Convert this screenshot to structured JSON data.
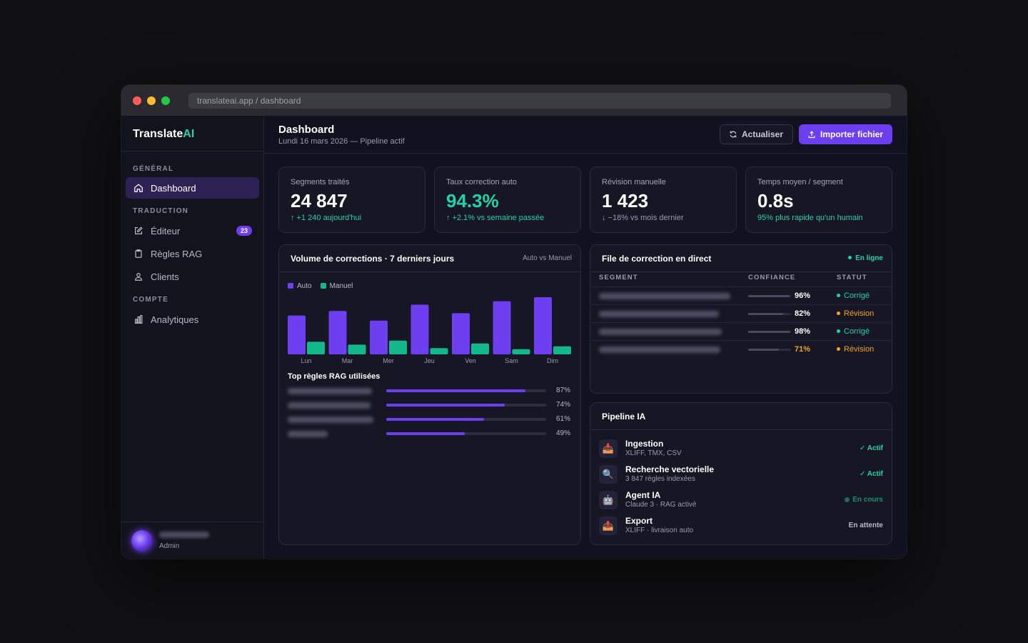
{
  "window": {
    "url": "translateai.app / dashboard",
    "traffic_lights": [
      "#ff5f57",
      "#febc2e",
      "#28c840"
    ]
  },
  "brand": {
    "name": "Translate",
    "accent": "AI"
  },
  "sidebar": {
    "sections": [
      {
        "label": "GÉNÉRAL",
        "items": [
          {
            "label": "Dashboard",
            "icon": "home-icon",
            "active": true
          }
        ]
      },
      {
        "label": "TRADUCTION",
        "items": [
          {
            "label": "Éditeur",
            "icon": "edit-icon",
            "badge": "23"
          },
          {
            "label": "Règles RAG",
            "icon": "clipboard-icon"
          },
          {
            "label": "Clients",
            "icon": "users-icon"
          }
        ]
      },
      {
        "label": "COMPTE",
        "items": [
          {
            "label": "Analytiques",
            "icon": "bar-chart-icon"
          }
        ]
      }
    ],
    "user": {
      "role": "Admin"
    }
  },
  "header": {
    "title": "Dashboard",
    "subtitle": "Lundi 16 mars 2026 — Pipeline actif",
    "refresh_label": "Actualiser",
    "import_label": "Importer fichier"
  },
  "kpis": [
    {
      "label": "Segments traités",
      "value": "24 847",
      "note": "↑ +1 240 aujourd'hui"
    },
    {
      "label": "Taux correction auto",
      "value": "94.3%",
      "note": "↑ +2.1% vs semaine passée"
    },
    {
      "label": "Révision manuelle",
      "value": "1 423",
      "note": "↓ −18% vs mois dernier"
    },
    {
      "label": "Temps moyen / segment",
      "value": "0.8s",
      "note": "95% plus rapide qu'un humain"
    }
  ],
  "volume_card": {
    "title": "Volume de corrections · 7 derniers jours",
    "aside": "Auto vs Manuel"
  },
  "chart_data": {
    "type": "bar",
    "title": "Volume de corrections · 7 derniers jours",
    "categories": [
      "Lun",
      "Mar",
      "Mer",
      "Jeu",
      "Ven",
      "Sam",
      "Dim"
    ],
    "series": [
      {
        "name": "Auto",
        "color": "#6d3ff0",
        "values": [
          68,
          76,
          59,
          87,
          72,
          93,
          100
        ]
      },
      {
        "name": "Manuel",
        "color": "#13b98a",
        "values": [
          22,
          17,
          24,
          11,
          19,
          9,
          14
        ]
      }
    ],
    "ylim": [
      0,
      100
    ],
    "grid": false,
    "legend": "top-left"
  },
  "rag": {
    "title": "Top règles RAG utilisées",
    "rules": [
      {
        "percent": "87%",
        "fraction": 0.87
      },
      {
        "percent": "74%",
        "fraction": 0.74
      },
      {
        "percent": "61%",
        "fraction": 0.61
      },
      {
        "percent": "49%",
        "fraction": 0.49
      }
    ]
  },
  "queue": {
    "title": "File de correction en direct",
    "status_label": "En ligne",
    "headers": {
      "segment": "SEGMENT",
      "confidence": "CONFIANCE",
      "status": "STATUT"
    },
    "rows": [
      {
        "confidence": "96%",
        "fraction": 0.96,
        "status": "Corrigé",
        "status_color": "#22d3a6"
      },
      {
        "confidence": "82%",
        "fraction": 0.82,
        "status": "Révision",
        "status_color": "#f5a524"
      },
      {
        "confidence": "98%",
        "fraction": 0.98,
        "status": "Corrigé",
        "status_color": "#22d3a6"
      },
      {
        "confidence": "71%",
        "fraction": 0.71,
        "status": "Révision",
        "status_color": "#f5a524"
      }
    ]
  },
  "pipeline": {
    "title": "Pipeline IA",
    "steps": [
      {
        "name": "Ingestion",
        "sub": "XLIFF, TMX, CSV",
        "state": "✓ Actif",
        "state_color": "#22d3a6",
        "icon": "inbox-icon"
      },
      {
        "name": "Recherche vectorielle",
        "sub": "3 847 règles indexées",
        "state": "✓ Actif",
        "state_color": "#22d3a6",
        "icon": "magnifier-icon"
      },
      {
        "name": "Agent IA",
        "sub": "Claude 3 · RAG activé",
        "state": "En cours",
        "state_color": "#1a8f6e",
        "icon": "robot-icon"
      },
      {
        "name": "Export",
        "sub": "XLIFF · livraison auto",
        "state": "En attente",
        "state_color": "#b8b8c8",
        "icon": "outbox-icon"
      }
    ]
  },
  "colors": {
    "accent": "#6d3ff0",
    "success": "#22d3a6",
    "warning": "#f5a524"
  }
}
